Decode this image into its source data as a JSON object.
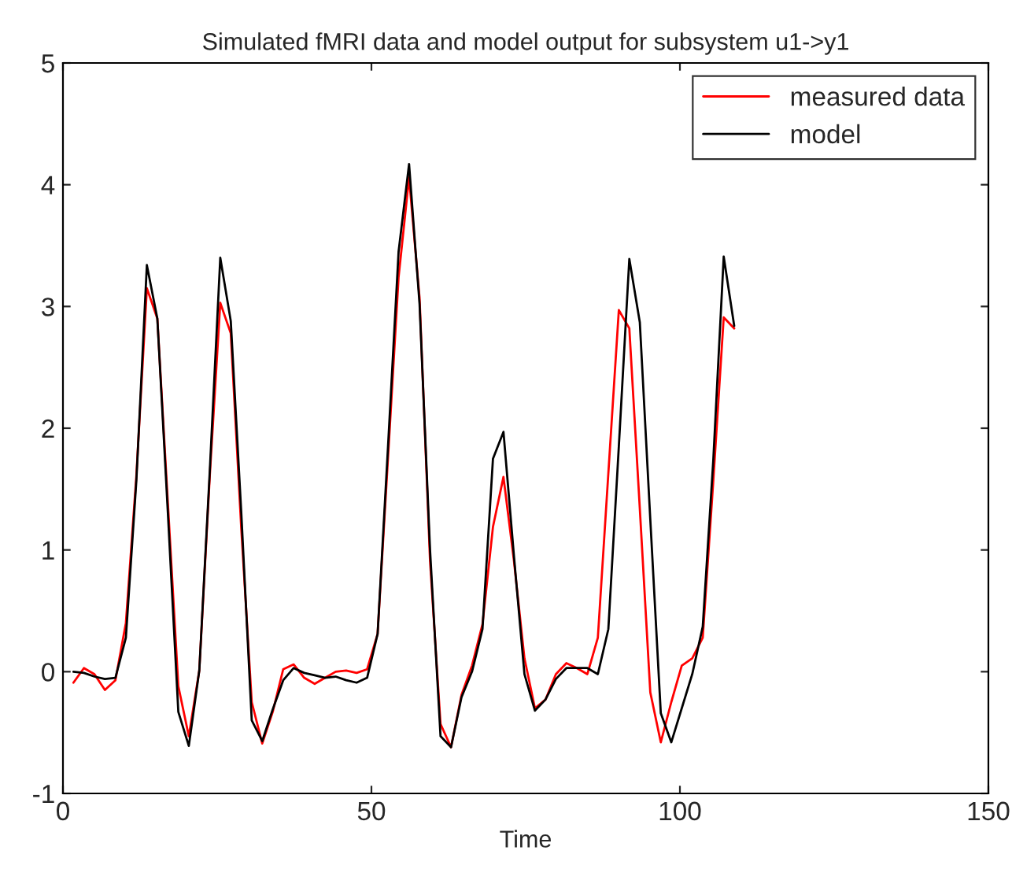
{
  "chart_data": {
    "type": "line",
    "title": "Simulated fMRI data and model output for subsystem u1->y1",
    "xlabel": "Time",
    "x": [
      1.7,
      3.4,
      5.1,
      6.8,
      8.5,
      10.2,
      11.9,
      13.6,
      15.3,
      17.0,
      18.7,
      20.4,
      22.1,
      23.8,
      25.5,
      27.2,
      28.9,
      30.6,
      32.3,
      34.0,
      35.7,
      37.4,
      39.1,
      40.8,
      42.5,
      44.2,
      45.9,
      47.6,
      49.3,
      51.0,
      52.7,
      54.4,
      56.1,
      57.8,
      59.5,
      61.2,
      62.9,
      64.6,
      66.3,
      68.0,
      69.7,
      71.4,
      73.1,
      74.8,
      76.5,
      78.2,
      79.9,
      81.6,
      83.3,
      85.0,
      86.7,
      88.4,
      90.1,
      91.8,
      93.5,
      95.2,
      96.9,
      98.6,
      100.3,
      102.0,
      103.7,
      105.4,
      107.1,
      108.8
    ],
    "series": [
      {
        "name": "measured data",
        "color": "#ff0000",
        "values": [
          -0.09,
          0.03,
          -0.02,
          -0.15,
          -0.07,
          0.4,
          1.61,
          3.15,
          2.9,
          1.39,
          -0.12,
          -0.53,
          0.01,
          1.61,
          3.03,
          2.78,
          1.18,
          -0.25,
          -0.59,
          -0.33,
          0.02,
          0.06,
          -0.05,
          -0.1,
          -0.05,
          0.0,
          0.01,
          -0.01,
          0.02,
          0.31,
          1.77,
          3.24,
          4.06,
          3.07,
          0.91,
          -0.43,
          -0.62,
          -0.19,
          0.05,
          0.39,
          1.19,
          1.6,
          0.91,
          0.11,
          -0.3,
          -0.23,
          -0.02,
          0.07,
          0.03,
          -0.02,
          0.28,
          1.63,
          2.97,
          2.82,
          1.34,
          -0.17,
          -0.58,
          -0.25,
          0.05,
          0.11,
          0.28,
          1.56,
          2.91,
          2.82
        ]
      },
      {
        "name": "model",
        "color": "#000000",
        "values": [
          0.0,
          -0.01,
          -0.04,
          -0.06,
          -0.05,
          0.28,
          1.57,
          3.34,
          2.9,
          1.31,
          -0.33,
          -0.61,
          0.01,
          1.65,
          3.4,
          2.88,
          1.31,
          -0.4,
          -0.57,
          -0.31,
          -0.07,
          0.03,
          -0.01,
          -0.03,
          -0.05,
          -0.04,
          -0.07,
          -0.09,
          -0.05,
          0.31,
          1.86,
          3.45,
          4.17,
          3.02,
          1.0,
          -0.53,
          -0.62,
          -0.21,
          0.0,
          0.35,
          1.75,
          1.97,
          0.95,
          -0.02,
          -0.32,
          -0.23,
          -0.06,
          0.03,
          0.03,
          0.03,
          -0.02,
          0.35,
          1.85,
          3.39,
          2.87,
          1.25,
          -0.34,
          -0.58,
          -0.3,
          -0.02,
          0.37,
          1.73,
          3.41,
          2.84
        ]
      }
    ],
    "xlim": [
      0,
      150
    ],
    "xticks": [
      0,
      50,
      100,
      150
    ],
    "ylim": [
      -1,
      5
    ],
    "yticks": [
      -1,
      0,
      1,
      2,
      3,
      4,
      5
    ],
    "legend": "top right",
    "grid": false,
    "marker": "none",
    "line_style": "solid"
  }
}
